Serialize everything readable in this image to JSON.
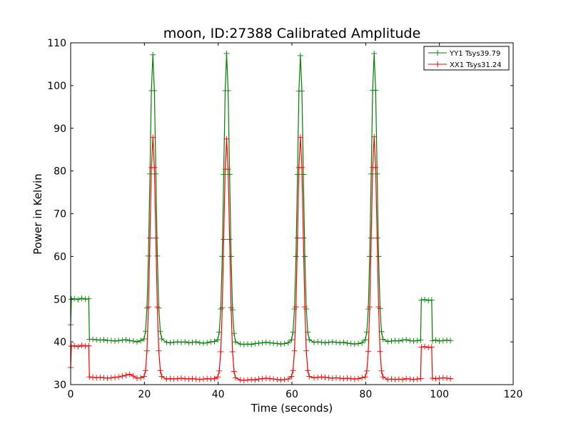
{
  "chart_data": {
    "type": "line",
    "title": "moon, ID:27388 Calibrated Amplitude",
    "xlabel": "Time (seconds)",
    "ylabel": "Power in Kelvin",
    "xlim": [
      0,
      120
    ],
    "ylim": [
      30,
      110
    ],
    "xticks": [
      0,
      20,
      40,
      60,
      80,
      100,
      120
    ],
    "yticks": [
      30,
      40,
      50,
      60,
      70,
      80,
      90,
      100,
      110
    ],
    "grid": false,
    "legend_position": "top-right",
    "x": [
      0,
      0.2,
      1,
      2,
      3,
      4,
      4.9,
      5.1,
      6,
      7,
      8,
      9,
      10,
      11,
      12,
      13,
      14,
      15,
      16,
      17,
      18,
      19,
      19.9,
      20.3,
      20.7,
      21.1,
      21.5,
      21.9,
      22.3,
      22.7,
      23.1,
      23.5,
      23.9,
      24.3,
      24.7,
      26,
      27,
      28,
      29,
      30,
      31,
      32,
      33,
      34,
      35,
      36,
      37,
      38,
      39,
      39.9,
      40.3,
      40.7,
      41.1,
      41.5,
      41.9,
      42.3,
      42.7,
      43.1,
      43.5,
      43.9,
      44.3,
      44.7,
      46,
      47,
      48,
      49,
      50,
      51,
      52,
      53,
      54,
      55,
      56,
      57,
      58,
      59,
      59.9,
      60.3,
      60.7,
      61.1,
      61.5,
      61.9,
      62.3,
      62.7,
      63.1,
      63.5,
      63.9,
      64.3,
      64.7,
      66,
      67,
      68,
      69,
      70,
      71,
      72,
      73,
      74,
      75,
      76,
      77,
      78,
      79,
      79.9,
      80.3,
      80.7,
      81.1,
      81.5,
      81.9,
      82.3,
      82.7,
      83.1,
      83.5,
      83.9,
      84.3,
      84.7,
      86,
      87,
      88,
      89,
      90,
      91,
      92,
      93,
      94,
      94.9,
      95.1,
      96,
      97,
      97.9,
      98.1,
      99,
      100,
      101,
      102,
      103
    ],
    "series": [
      {
        "name": "YY1 Tsys39.79",
        "color": "#008000",
        "values": [
          44,
          50,
          50.1,
          49.9,
          50.2,
          50,
          50.1,
          40.6,
          40.6,
          40.5,
          40.4,
          40.5,
          40.3,
          40.3,
          40.2,
          40.3,
          40.4,
          40.5,
          40.3,
          40.2,
          40.0,
          40.3,
          40.7,
          42.5,
          47.9,
          60.1,
          79.3,
          98.8,
          107.2,
          98.8,
          79.3,
          60.1,
          47.9,
          42.5,
          40.7,
          39.9,
          39.8,
          39.9,
          40,
          39.9,
          40,
          39.8,
          39.9,
          40,
          39.8,
          39.7,
          39.8,
          40,
          40.1,
          40.5,
          42.3,
          47.7,
          60,
          79.2,
          98.8,
          107.5,
          98.8,
          79.2,
          60,
          47.5,
          42,
          40,
          39.5,
          39.4,
          39.5,
          39.4,
          39.6,
          39.7,
          39.8,
          39.9,
          39.8,
          39.7,
          39.6,
          39.5,
          39.6,
          39.8,
          40.5,
          42.3,
          47.7,
          60,
          79.2,
          98.7,
          107,
          98.7,
          79.2,
          60,
          47.7,
          42.3,
          40.5,
          39.9,
          40,
          39.9,
          39.8,
          39.9,
          40,
          39.9,
          39.8,
          39.9,
          39.7,
          39.6,
          39.5,
          39.6,
          39.8,
          40.5,
          42.3,
          47.7,
          60,
          79.3,
          98.9,
          107.5,
          98.9,
          79.3,
          60,
          47.8,
          42.4,
          40.6,
          40.1,
          40.2,
          40.3,
          40.2,
          40.4,
          40.5,
          40.3,
          40.2,
          40.3,
          40.4,
          49.8,
          49.9,
          49.7,
          49.8,
          40.3,
          40.4,
          40.2,
          40.3,
          40.4,
          40.3
        ]
      },
      {
        "name": "XX1 Tsys31.24",
        "color": "#ff0000",
        "values": [
          34,
          39,
          39.1,
          38.9,
          39.2,
          39,
          39.1,
          31.8,
          31.7,
          31.6,
          31.7,
          31.6,
          31.5,
          31.6,
          31.7,
          31.8,
          32.0,
          32.2,
          32.4,
          32.0,
          31.5,
          31.6,
          31.9,
          33.3,
          37.9,
          48.2,
          64.3,
          80.8,
          87.9,
          80.8,
          64.3,
          48.2,
          37.9,
          33.3,
          31.9,
          31.3,
          31.4,
          31.3,
          31.4,
          31.5,
          31.4,
          31.3,
          31.4,
          31.3,
          31.2,
          31.3,
          31.4,
          31.3,
          31.4,
          31.8,
          33.2,
          37.7,
          48,
          64,
          80.4,
          87.5,
          80.4,
          64,
          48,
          37.7,
          33.1,
          31.6,
          31.1,
          31.0,
          31.1,
          31.2,
          31.1,
          31.3,
          31.4,
          31.5,
          31.4,
          31.3,
          31.2,
          31.1,
          31.2,
          31.3,
          31.9,
          33.3,
          37.9,
          48.2,
          64.3,
          80.8,
          87.9,
          80.8,
          64.3,
          48.2,
          37.9,
          33.3,
          31.9,
          31.6,
          31.7,
          31.8,
          31.7,
          31.6,
          31.5,
          31.6,
          31.5,
          31.4,
          31.5,
          31.4,
          31.3,
          31.4,
          31.6,
          31.8,
          33.2,
          37.8,
          48.2,
          64.3,
          80.8,
          88,
          80.8,
          64.3,
          48.2,
          37.8,
          33.2,
          31.8,
          31.2,
          31.3,
          31.2,
          31.3,
          31.2,
          31.4,
          31.3,
          31.2,
          31.3,
          31.4,
          38.8,
          38.9,
          38.7,
          38.8,
          31.5,
          31.4,
          31.5,
          31.6,
          31.5,
          31.4
        ]
      }
    ]
  }
}
